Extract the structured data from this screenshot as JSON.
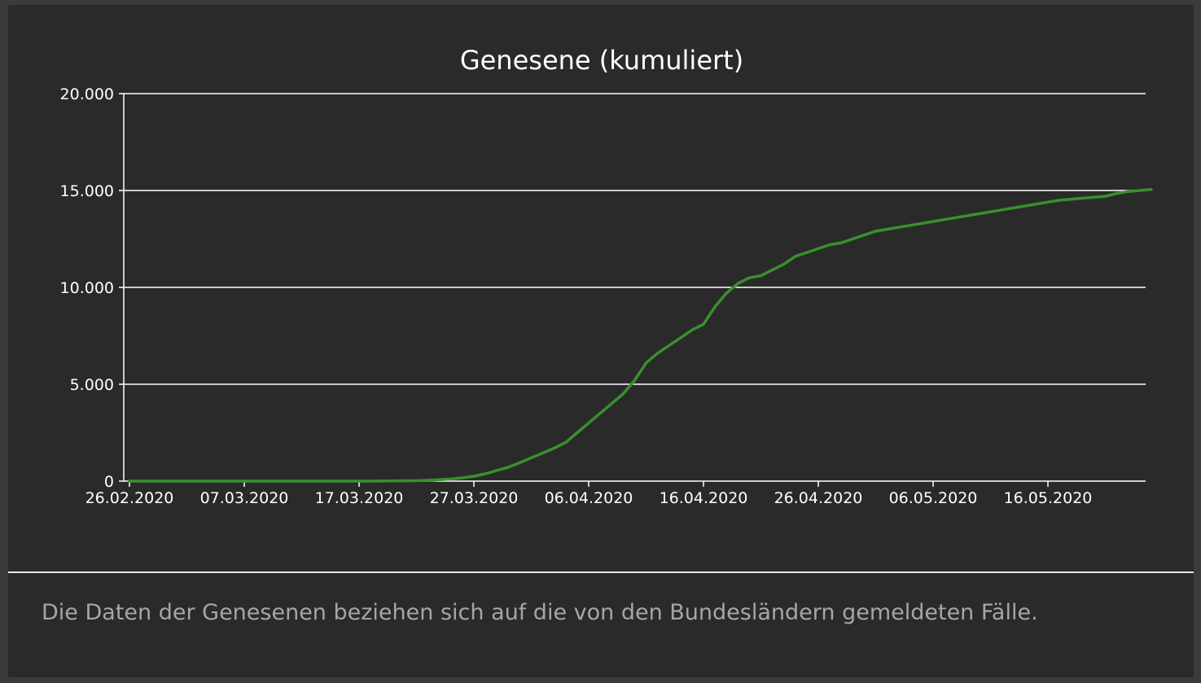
{
  "colors": {
    "background": "#2a2a2a",
    "line": "#3a8f2f",
    "grid": "#ffffff",
    "text": "#ffffff",
    "footnote": "#a6a6a6"
  },
  "chart_data": {
    "type": "line",
    "title": "Genesene (kumuliert)",
    "xlabel": "",
    "ylabel": "",
    "ylim": [
      0,
      20000
    ],
    "yticks": [
      0,
      5000,
      10000,
      15000,
      20000
    ],
    "ytick_labels": [
      "0",
      "5.000",
      "10.000",
      "15.000",
      "20.000"
    ],
    "xtick_labels": [
      "26.02.2020",
      "07.03.2020",
      "17.03.2020",
      "27.03.2020",
      "06.04.2020",
      "16.04.2020",
      "26.04.2020",
      "06.05.2020",
      "16.05.2020"
    ],
    "grid": true,
    "series": [
      {
        "x": [
          "26.02.2020",
          "27.02.2020",
          "28.02.2020",
          "29.02.2020",
          "01.03.2020",
          "02.03.2020",
          "03.03.2020",
          "04.03.2020",
          "05.03.2020",
          "06.03.2020",
          "07.03.2020",
          "08.03.2020",
          "09.03.2020",
          "10.03.2020",
          "11.03.2020",
          "12.03.2020",
          "13.03.2020",
          "14.03.2020",
          "15.03.2020",
          "16.03.2020",
          "17.03.2020",
          "18.03.2020",
          "19.03.2020",
          "20.03.2020",
          "21.03.2020",
          "22.03.2020",
          "23.03.2020",
          "24.03.2020",
          "25.03.2020",
          "26.03.2020",
          "27.03.2020",
          "28.03.2020",
          "29.03.2020",
          "30.03.2020",
          "31.03.2020",
          "01.04.2020",
          "02.04.2020",
          "03.04.2020",
          "04.04.2020",
          "05.04.2020",
          "06.04.2020",
          "07.04.2020",
          "08.04.2020",
          "09.04.2020",
          "10.04.2020",
          "11.04.2020",
          "12.04.2020",
          "13.04.2020",
          "14.04.2020",
          "15.04.2020",
          "16.04.2020",
          "17.04.2020",
          "18.04.2020",
          "19.04.2020",
          "20.04.2020",
          "21.04.2020",
          "22.04.2020",
          "23.04.2020",
          "24.04.2020",
          "25.04.2020",
          "26.04.2020",
          "27.04.2020",
          "28.04.2020",
          "29.04.2020",
          "30.04.2020",
          "01.05.2020",
          "02.05.2020",
          "03.05.2020",
          "04.05.2020",
          "05.05.2020",
          "06.05.2020",
          "07.05.2020",
          "08.05.2020",
          "09.05.2020",
          "10.05.2020",
          "11.05.2020",
          "12.05.2020",
          "13.05.2020",
          "14.05.2020",
          "15.05.2020",
          "16.05.2020",
          "17.05.2020",
          "18.05.2020",
          "19.05.2020",
          "20.05.2020",
          "21.05.2020",
          "22.05.2020",
          "23.05.2020",
          "24.05.2020",
          "25.05.2020"
        ],
        "values": [
          0,
          0,
          0,
          0,
          0,
          0,
          0,
          0,
          0,
          0,
          0,
          0,
          0,
          0,
          0,
          0,
          0,
          0,
          0,
          0,
          0,
          0,
          5,
          10,
          15,
          20,
          40,
          70,
          110,
          170,
          250,
          380,
          550,
          720,
          950,
          1200,
          1450,
          1700,
          2000,
          2500,
          3000,
          3500,
          4000,
          4500,
          5200,
          6100,
          6600,
          7000,
          7400,
          7800,
          8100,
          9000,
          9700,
          10200,
          10500,
          10600,
          10900,
          11200,
          11600,
          11800,
          12000,
          12200,
          12300,
          12500,
          12700,
          12900,
          13000,
          13100,
          13200,
          13300,
          13400,
          13500,
          13600,
          13700,
          13800,
          13900,
          14000,
          14100,
          14200,
          14300,
          14400,
          14500,
          14550,
          14600,
          14650,
          14700,
          14850,
          14950,
          15000,
          15050
        ]
      }
    ]
  },
  "footnote": "Die Daten der Genesenen beziehen sich auf die von den Bundesländern gemeldeten Fälle."
}
